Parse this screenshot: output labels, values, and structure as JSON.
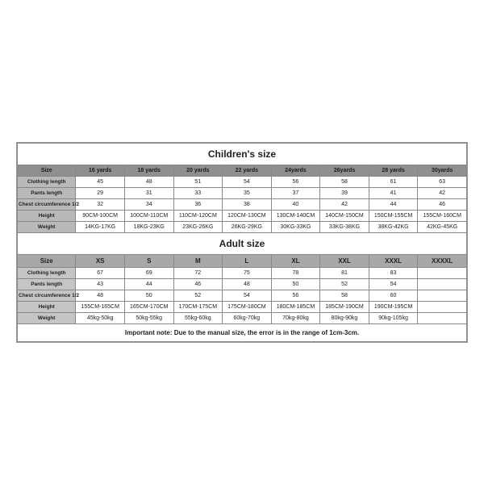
{
  "children": {
    "title": "Children's size",
    "header_label": "Size",
    "columns": [
      "16 yards",
      "18 yards",
      "20 yards",
      "22 yards",
      "24yards",
      "26yards",
      "28 yards",
      "30yards"
    ],
    "rows": [
      {
        "label": "Clothing length",
        "values": [
          "45",
          "48",
          "51",
          "54",
          "56",
          "58",
          "61",
          "63"
        ]
      },
      {
        "label": "Pants length",
        "values": [
          "29",
          "31",
          "33",
          "35",
          "37",
          "39",
          "41",
          "42"
        ]
      },
      {
        "label": "Chest circumference 1/2",
        "values": [
          "32",
          "34",
          "36",
          "38",
          "40",
          "42",
          "44",
          "46"
        ]
      },
      {
        "label": "Height",
        "values": [
          "90CM-100CM",
          "100CM-110CM",
          "110CM-120CM",
          "120CM-130CM",
          "130CM-140CM",
          "140CM-150CM",
          "150CM-155CM",
          "155CM-160CM"
        ]
      },
      {
        "label": "Weight",
        "values": [
          "14KG-17KG",
          "18KG-23KG",
          "23KG-26KG",
          "26KG-29KG",
          "30KG-33KG",
          "33KG-38KG",
          "38KG-42KG",
          "42KG-45KG"
        ]
      }
    ]
  },
  "adult": {
    "title": "Adult size",
    "header_label": "Size",
    "columns": [
      "XS",
      "S",
      "M",
      "L",
      "XL",
      "XXL",
      "XXXL",
      "XXXXL"
    ],
    "rows": [
      {
        "label": "Clothing length",
        "values": [
          "67",
          "69",
          "72",
          "75",
          "78",
          "81",
          "83",
          ""
        ]
      },
      {
        "label": "Pants length",
        "values": [
          "43",
          "44",
          "46",
          "48",
          "50",
          "52",
          "54",
          ""
        ]
      },
      {
        "label": "Chest circumference 1/2",
        "values": [
          "48",
          "50",
          "52",
          "54",
          "56",
          "58",
          "60",
          ""
        ]
      },
      {
        "label": "Height",
        "values": [
          "155CM-165CM",
          "165CM-170CM",
          "170CM-175CM",
          "175CM-180CM",
          "180CM-185CM",
          "185CM-190CM",
          "190CM-195CM",
          ""
        ]
      },
      {
        "label": "Weight",
        "values": [
          "45kg-50kg",
          "50kg-55kg",
          "55kg-60kg",
          "60kg-70kg",
          "70kg-80kg",
          "80kg-90kg",
          "90kg-105kg",
          ""
        ]
      }
    ]
  },
  "note": "Important note: Due to the manual size, the error is in the range of 1cm-3cm."
}
